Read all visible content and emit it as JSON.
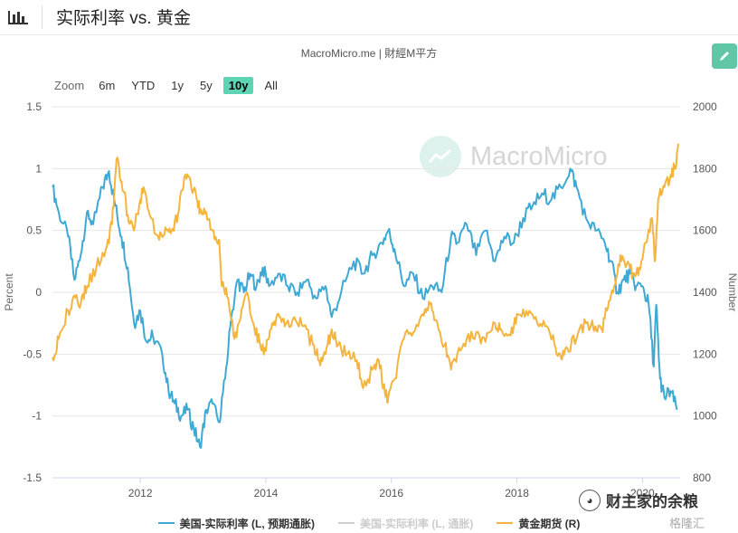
{
  "header": {
    "title": "实际利率 vs. 黄金",
    "chart_icon": "bar-chart-icon"
  },
  "credit": "MacroMicro.me | 財經M平方",
  "zoom": {
    "label": "Zoom",
    "options": [
      "6m",
      "YTD",
      "1y",
      "5y",
      "10y",
      "All"
    ],
    "active": "10y"
  },
  "edit_icon": "pencil-icon",
  "logo_watermark": "MacroMicro",
  "source_watermark": {
    "text": "财主家的余粮",
    "icon": "wechat-icon",
    "secondary": "格隆汇"
  },
  "colors": {
    "real_rate": "#3fa9d4",
    "real_rate_alt": "#cccccc",
    "gold": "#f4b53f",
    "accent": "#5fc7a6"
  },
  "chart_data": {
    "type": "line",
    "title": "",
    "y_left": {
      "label": "Percent",
      "min": -1.5,
      "max": 1.5,
      "ticks": [
        "1.5",
        "1",
        "0.5",
        "0",
        "-0.5",
        "-1",
        "-1.5"
      ]
    },
    "y_right": {
      "label": "Number",
      "min": 800,
      "max": 2000,
      "ticks": [
        "2000",
        "1800",
        "1600",
        "1400",
        "1200",
        "1000",
        "800"
      ]
    },
    "x_range": [
      2010.6,
      2020.6
    ],
    "x_ticks": [
      "2012",
      "2014",
      "2016",
      "2018",
      "2020"
    ],
    "grid": true,
    "legend_position": "bottom",
    "series": [
      {
        "name": "美国-实际利率 (L, 预期通胀)",
        "axis": "left",
        "visible": true,
        "points": [
          [
            2010.6,
            0.85
          ],
          [
            2010.7,
            0.65
          ],
          [
            2010.85,
            0.45
          ],
          [
            2010.95,
            0.1
          ],
          [
            2011.05,
            0.3
          ],
          [
            2011.15,
            0.65
          ],
          [
            2011.25,
            0.55
          ],
          [
            2011.4,
            0.85
          ],
          [
            2011.5,
            0.98
          ],
          [
            2011.6,
            0.7
          ],
          [
            2011.7,
            0.45
          ],
          [
            2011.8,
            0.2
          ],
          [
            2011.9,
            -0.25
          ],
          [
            2012.0,
            -0.15
          ],
          [
            2012.1,
            -0.4
          ],
          [
            2012.2,
            -0.35
          ],
          [
            2012.35,
            -0.5
          ],
          [
            2012.45,
            -0.8
          ],
          [
            2012.55,
            -0.9
          ],
          [
            2012.65,
            -1.0
          ],
          [
            2012.75,
            -0.95
          ],
          [
            2012.85,
            -1.1
          ],
          [
            2012.95,
            -1.25
          ],
          [
            2013.05,
            -0.95
          ],
          [
            2013.15,
            -0.9
          ],
          [
            2013.25,
            -1.05
          ],
          [
            2013.35,
            -0.7
          ],
          [
            2013.45,
            -0.2
          ],
          [
            2013.55,
            0.1
          ],
          [
            2013.65,
            0.0
          ],
          [
            2013.75,
            0.15
          ],
          [
            2013.85,
            0.05
          ],
          [
            2013.95,
            0.2
          ],
          [
            2014.05,
            0.05
          ],
          [
            2014.2,
            0.15
          ],
          [
            2014.35,
            0.05
          ],
          [
            2014.5,
            0.0
          ],
          [
            2014.65,
            0.1
          ],
          [
            2014.8,
            -0.05
          ],
          [
            2014.95,
            0.05
          ],
          [
            2015.05,
            -0.2
          ],
          [
            2015.2,
            0.0
          ],
          [
            2015.4,
            0.25
          ],
          [
            2015.55,
            0.15
          ],
          [
            2015.7,
            0.3
          ],
          [
            2015.85,
            0.4
          ],
          [
            2015.95,
            0.5
          ],
          [
            2016.05,
            0.35
          ],
          [
            2016.2,
            0.05
          ],
          [
            2016.35,
            0.15
          ],
          [
            2016.5,
            -0.05
          ],
          [
            2016.65,
            0.05
          ],
          [
            2016.8,
            0.0
          ],
          [
            2016.95,
            0.45
          ],
          [
            2017.05,
            0.4
          ],
          [
            2017.2,
            0.55
          ],
          [
            2017.35,
            0.3
          ],
          [
            2017.5,
            0.5
          ],
          [
            2017.65,
            0.25
          ],
          [
            2017.8,
            0.45
          ],
          [
            2017.95,
            0.4
          ],
          [
            2018.1,
            0.6
          ],
          [
            2018.25,
            0.7
          ],
          [
            2018.4,
            0.8
          ],
          [
            2018.55,
            0.75
          ],
          [
            2018.7,
            0.85
          ],
          [
            2018.85,
            1.0
          ],
          [
            2018.95,
            0.85
          ],
          [
            2019.1,
            0.6
          ],
          [
            2019.25,
            0.5
          ],
          [
            2019.4,
            0.4
          ],
          [
            2019.5,
            0.25
          ],
          [
            2019.6,
            0.0
          ],
          [
            2019.7,
            0.1
          ],
          [
            2019.8,
            0.15
          ],
          [
            2019.9,
            0.05
          ],
          [
            2020.0,
            0.05
          ],
          [
            2020.1,
            -0.1
          ],
          [
            2020.18,
            -0.6
          ],
          [
            2020.22,
            -0.1
          ],
          [
            2020.28,
            -0.7
          ],
          [
            2020.35,
            -0.85
          ],
          [
            2020.45,
            -0.8
          ],
          [
            2020.55,
            -0.95
          ]
        ]
      },
      {
        "name": "美国-实际利率 (L, 通胀)",
        "axis": "left",
        "visible": false,
        "points": []
      },
      {
        "name": "黄金期货 (R)",
        "axis": "right",
        "visible": true,
        "points": [
          [
            2010.6,
            1190
          ],
          [
            2010.7,
            1250
          ],
          [
            2010.85,
            1340
          ],
          [
            2010.95,
            1390
          ],
          [
            2011.05,
            1360
          ],
          [
            2011.15,
            1420
          ],
          [
            2011.3,
            1480
          ],
          [
            2011.45,
            1540
          ],
          [
            2011.55,
            1620
          ],
          [
            2011.62,
            1830
          ],
          [
            2011.7,
            1760
          ],
          [
            2011.8,
            1650
          ],
          [
            2011.9,
            1600
          ],
          [
            2012.0,
            1700
          ],
          [
            2012.05,
            1740
          ],
          [
            2012.15,
            1650
          ],
          [
            2012.3,
            1570
          ],
          [
            2012.4,
            1610
          ],
          [
            2012.5,
            1600
          ],
          [
            2012.6,
            1650
          ],
          [
            2012.7,
            1770
          ],
          [
            2012.8,
            1760
          ],
          [
            2012.9,
            1700
          ],
          [
            2012.95,
            1670
          ],
          [
            2013.05,
            1660
          ],
          [
            2013.15,
            1600
          ],
          [
            2013.25,
            1570
          ],
          [
            2013.3,
            1420
          ],
          [
            2013.4,
            1380
          ],
          [
            2013.5,
            1250
          ],
          [
            2013.6,
            1320
          ],
          [
            2013.7,
            1400
          ],
          [
            2013.8,
            1300
          ],
          [
            2013.9,
            1240
          ],
          [
            2014.0,
            1210
          ],
          [
            2014.1,
            1300
          ],
          [
            2014.2,
            1330
          ],
          [
            2014.3,
            1290
          ],
          [
            2014.45,
            1320
          ],
          [
            2014.6,
            1290
          ],
          [
            2014.75,
            1230
          ],
          [
            2014.85,
            1180
          ],
          [
            2014.95,
            1200
          ],
          [
            2015.05,
            1280
          ],
          [
            2015.15,
            1230
          ],
          [
            2015.3,
            1200
          ],
          [
            2015.45,
            1180
          ],
          [
            2015.55,
            1090
          ],
          [
            2015.7,
            1150
          ],
          [
            2015.8,
            1180
          ],
          [
            2015.9,
            1070
          ],
          [
            2015.95,
            1060
          ],
          [
            2016.05,
            1120
          ],
          [
            2016.2,
            1250
          ],
          [
            2016.35,
            1270
          ],
          [
            2016.5,
            1330
          ],
          [
            2016.6,
            1370
          ],
          [
            2016.7,
            1310
          ],
          [
            2016.85,
            1230
          ],
          [
            2016.95,
            1150
          ],
          [
            2017.05,
            1200
          ],
          [
            2017.2,
            1250
          ],
          [
            2017.35,
            1270
          ],
          [
            2017.5,
            1240
          ],
          [
            2017.65,
            1300
          ],
          [
            2017.75,
            1280
          ],
          [
            2017.9,
            1260
          ],
          [
            2018.0,
            1330
          ],
          [
            2018.15,
            1340
          ],
          [
            2018.3,
            1320
          ],
          [
            2018.45,
            1290
          ],
          [
            2018.6,
            1230
          ],
          [
            2018.7,
            1190
          ],
          [
            2018.8,
            1220
          ],
          [
            2018.95,
            1250
          ],
          [
            2019.1,
            1300
          ],
          [
            2019.25,
            1290
          ],
          [
            2019.35,
            1280
          ],
          [
            2019.45,
            1350
          ],
          [
            2019.55,
            1420
          ],
          [
            2019.65,
            1520
          ],
          [
            2019.75,
            1490
          ],
          [
            2019.85,
            1460
          ],
          [
            2019.95,
            1480
          ],
          [
            2020.05,
            1560
          ],
          [
            2020.15,
            1640
          ],
          [
            2020.2,
            1500
          ],
          [
            2020.25,
            1700
          ],
          [
            2020.35,
            1740
          ],
          [
            2020.45,
            1780
          ],
          [
            2020.52,
            1810
          ],
          [
            2020.58,
            1880
          ]
        ]
      }
    ]
  }
}
